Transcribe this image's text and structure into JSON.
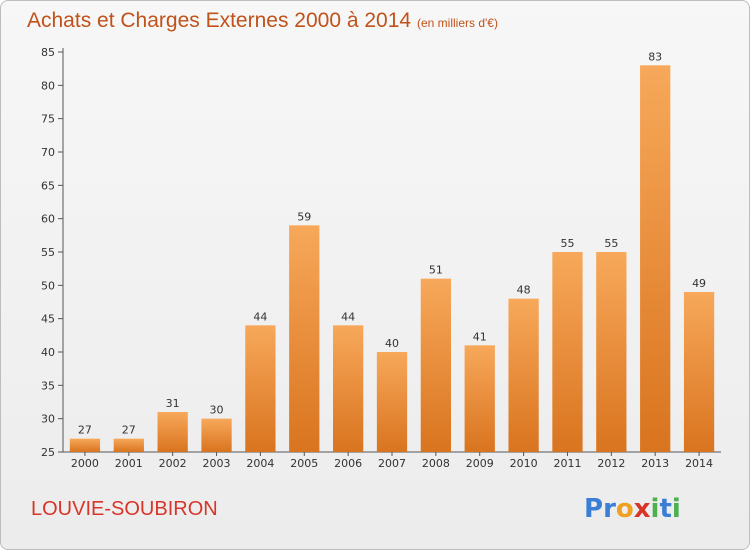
{
  "title": "Achats et Charges Externes 2000 à 2014",
  "subtitle": "(en milliers d'€)",
  "town": "LOUVIE-SOUBIRON",
  "logo": {
    "text": "Proxiti",
    "letters": [
      {
        "ch": "P",
        "color": "#3a7fd5"
      },
      {
        "ch": "r",
        "color": "#3a7fd5"
      },
      {
        "ch": "o",
        "color": "#f0a020"
      },
      {
        "ch": "x",
        "color": "#d8352a"
      },
      {
        "ch": "i",
        "color": "#4caf50"
      },
      {
        "ch": "t",
        "color": "#3a7fd5"
      },
      {
        "ch": "i",
        "color": "#4caf50"
      }
    ]
  },
  "colors": {
    "bar_light": "#f7a85a",
    "bar_dark": "#d9741f",
    "accent": "#c0521a"
  },
  "chart_data": {
    "type": "bar",
    "categories": [
      "2000",
      "2001",
      "2002",
      "2003",
      "2004",
      "2005",
      "2006",
      "2007",
      "2008",
      "2009",
      "2010",
      "2011",
      "2012",
      "2013",
      "2014"
    ],
    "values": [
      27,
      27,
      31,
      30,
      44,
      59,
      44,
      40,
      51,
      41,
      48,
      55,
      55,
      83,
      49
    ],
    "title": "Achats et Charges Externes 2000 à 2014",
    "ylim": [
      25,
      85
    ],
    "yticks": [
      25,
      30,
      35,
      40,
      45,
      50,
      55,
      60,
      65,
      70,
      75,
      80,
      85
    ],
    "grid": false,
    "legend": "none"
  }
}
